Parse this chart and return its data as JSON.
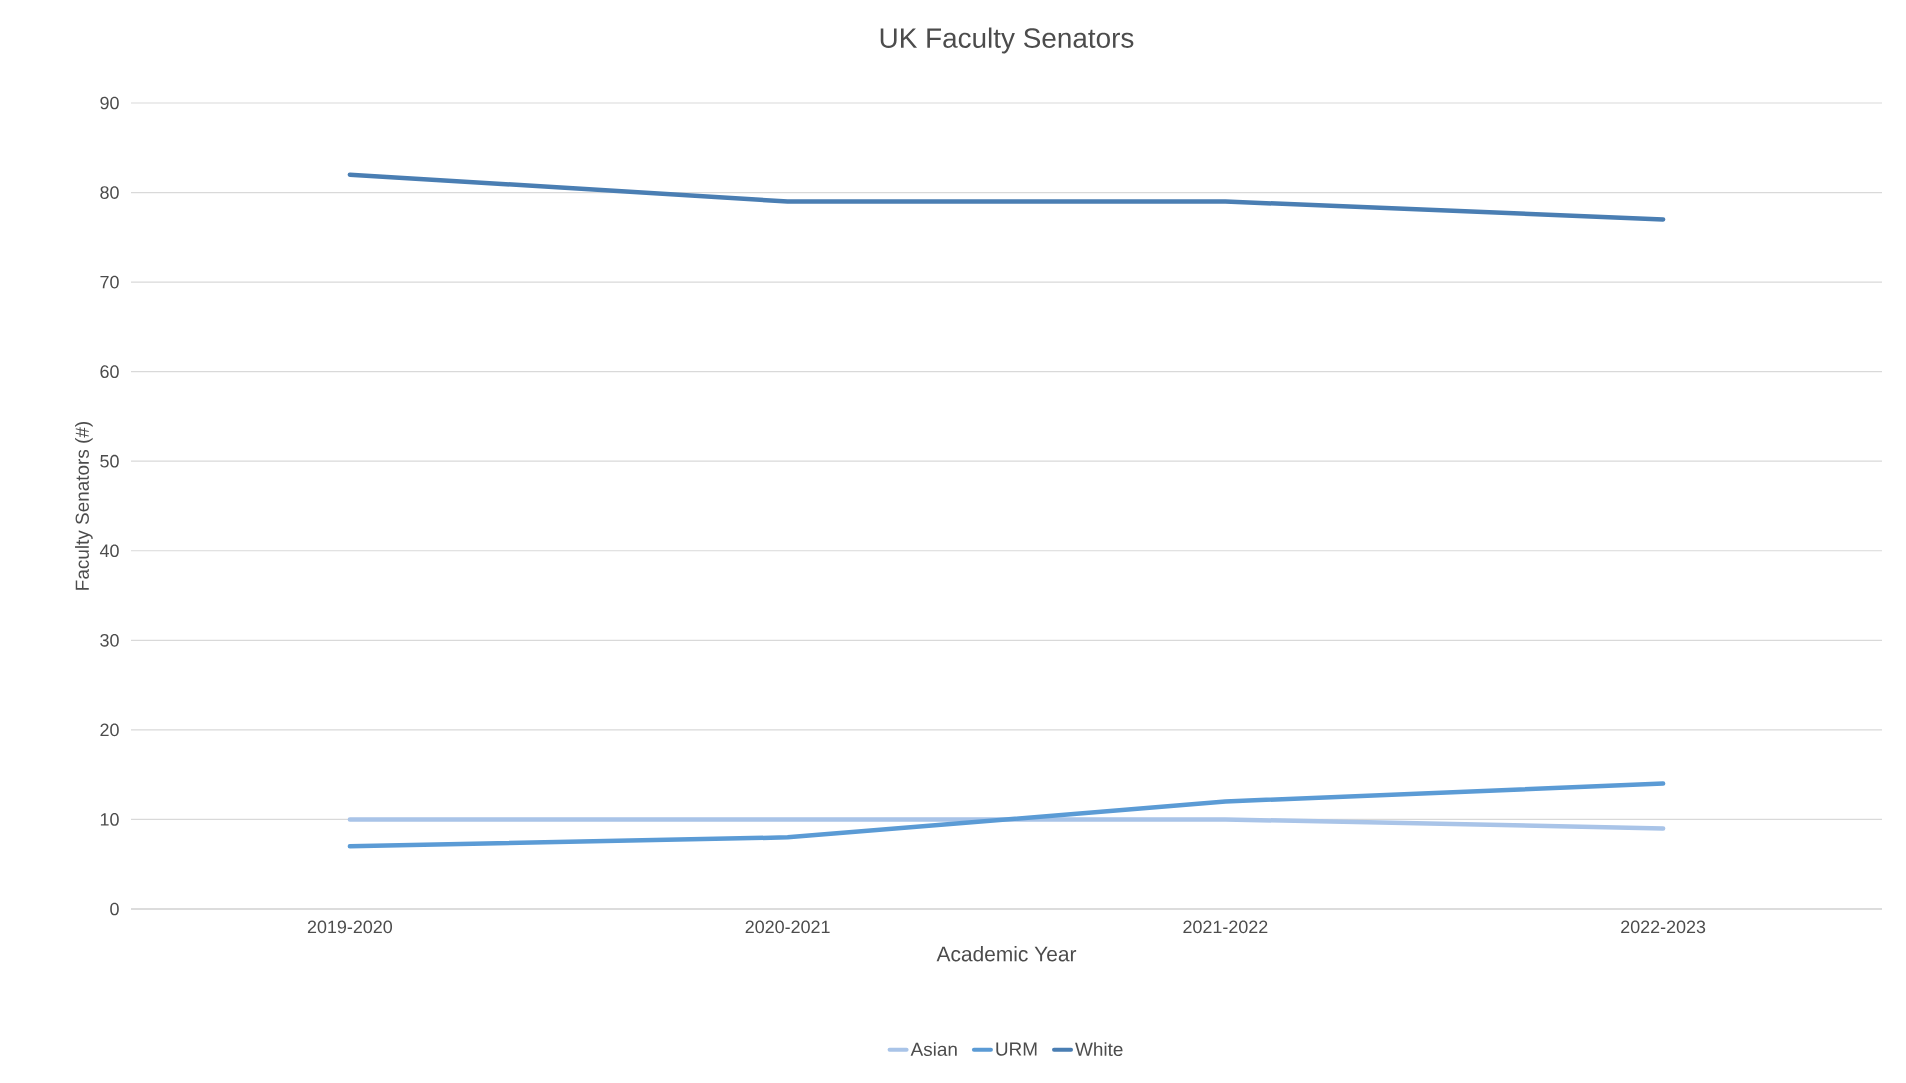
{
  "chart_data": {
    "type": "line",
    "title": "UK Faculty Senators",
    "xlabel": "Academic Year",
    "ylabel": "Faculty Senators (#)",
    "categories": [
      "2019-2020",
      "2020-2021",
      "2021-2022",
      "2022-2023"
    ],
    "series": [
      {
        "name": "Asian",
        "color": "#a9c4e8",
        "values": [
          10,
          10,
          10,
          9
        ]
      },
      {
        "name": "URM",
        "color": "#5b9bd5",
        "values": [
          7,
          8,
          12,
          14
        ]
      },
      {
        "name": "White",
        "color": "#4a7eb3",
        "values": [
          82,
          79,
          79,
          77
        ]
      }
    ],
    "ylim": [
      0,
      90
    ],
    "yticks": [
      0,
      10,
      20,
      30,
      40,
      50,
      60,
      70,
      80,
      90
    ],
    "grid": "y",
    "legend": "bottom",
    "line_style": "solid",
    "marker": "none"
  }
}
